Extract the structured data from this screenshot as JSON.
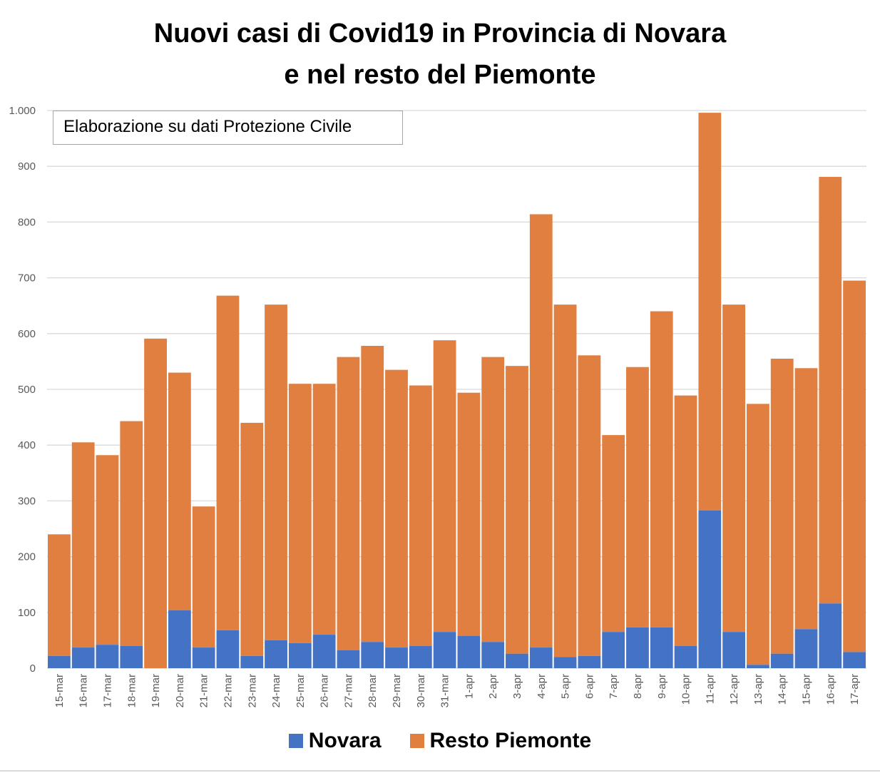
{
  "title_line1": "Nuovi casi di Covid19 in Provincia di Novara",
  "title_line2": "e nel resto del Piemonte",
  "note": "Elaborazione su dati Protezione Civile",
  "colors": {
    "novara": "#4472c4",
    "resto": "#e07f40",
    "grid": "#d9d9d9"
  },
  "chart_data": {
    "type": "bar",
    "stacked": true,
    "title": "Nuovi casi di Covid19 in Provincia di Novara e nel resto del Piemonte",
    "xlabel": "",
    "ylabel": "",
    "ylim": [
      0,
      1000
    ],
    "yticks": [
      0,
      100,
      200,
      300,
      400,
      500,
      600,
      700,
      800,
      900,
      1000
    ],
    "ytick_labels": [
      "0",
      "100",
      "200",
      "300",
      "400",
      "500",
      "600",
      "700",
      "800",
      "900",
      "1.000"
    ],
    "grid": true,
    "legend": "bottom",
    "categories": [
      "15-mar",
      "16-mar",
      "17-mar",
      "18-mar",
      "19-mar",
      "20-mar",
      "21-mar",
      "22-mar",
      "23-mar",
      "24-mar",
      "25-mar",
      "26-mar",
      "27-mar",
      "28-mar",
      "29-mar",
      "30-mar",
      "31-mar",
      "1-apr",
      "2-apr",
      "3-apr",
      "4-apr",
      "5-apr",
      "6-apr",
      "7-apr",
      "8-apr",
      "9-apr",
      "10-apr",
      "11-apr",
      "12-apr",
      "13-apr",
      "14-apr",
      "15-apr",
      "16-apr",
      "17-apr"
    ],
    "series": [
      {
        "name": "Novara",
        "values": [
          22,
          37,
          42,
          40,
          0,
          104,
          37,
          68,
          22,
          50,
          45,
          60,
          32,
          47,
          37,
          40,
          65,
          58,
          47,
          26,
          37,
          20,
          22,
          65,
          73,
          73,
          40,
          283,
          65,
          6,
          26,
          70,
          116,
          29
        ]
      },
      {
        "name": "Resto Piemonte",
        "values": [
          218,
          368,
          340,
          403,
          591,
          426,
          253,
          600,
          418,
          602,
          465,
          450,
          526,
          531,
          498,
          467,
          523,
          436,
          511,
          516,
          777,
          632,
          539,
          353,
          467,
          567,
          449,
          713,
          587,
          468,
          529,
          468,
          765,
          666
        ]
      }
    ]
  }
}
